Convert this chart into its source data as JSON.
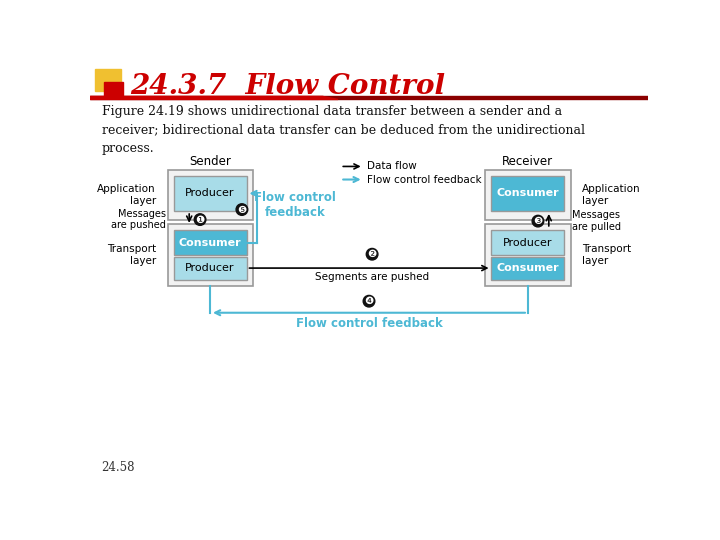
{
  "title": "24.3.7  Flow Control",
  "title_color": "#cc0000",
  "title_fontsize": 20,
  "bg_color": "#ffffff",
  "body_text": "Figure 24.19 shows unidirectional data transfer between a sender and a\nreceiver; bidirectional data transfer can be deduced from the unidirectional\nprocess.",
  "footer_text": "24.58",
  "sender_label": "Sender",
  "receiver_label": "Receiver",
  "cyan_color": "#4db8d4",
  "cyan_light": "#a8dce8",
  "box_outline_color": "#999999",
  "box_fill_color": "#f2f2f2",
  "legend_data_flow": "Data flow",
  "legend_fc_feedback": "Flow control feedback",
  "flow_control_feedback_label": "Flow control\nfeedback",
  "flow_control_feedback_bottom": "Flow control feedback",
  "segments_pushed_label": "Segments are pushed",
  "messages_pushed_label": "Messages\nare pushed",
  "messages_pulled_label": "Messages\nare pulled"
}
